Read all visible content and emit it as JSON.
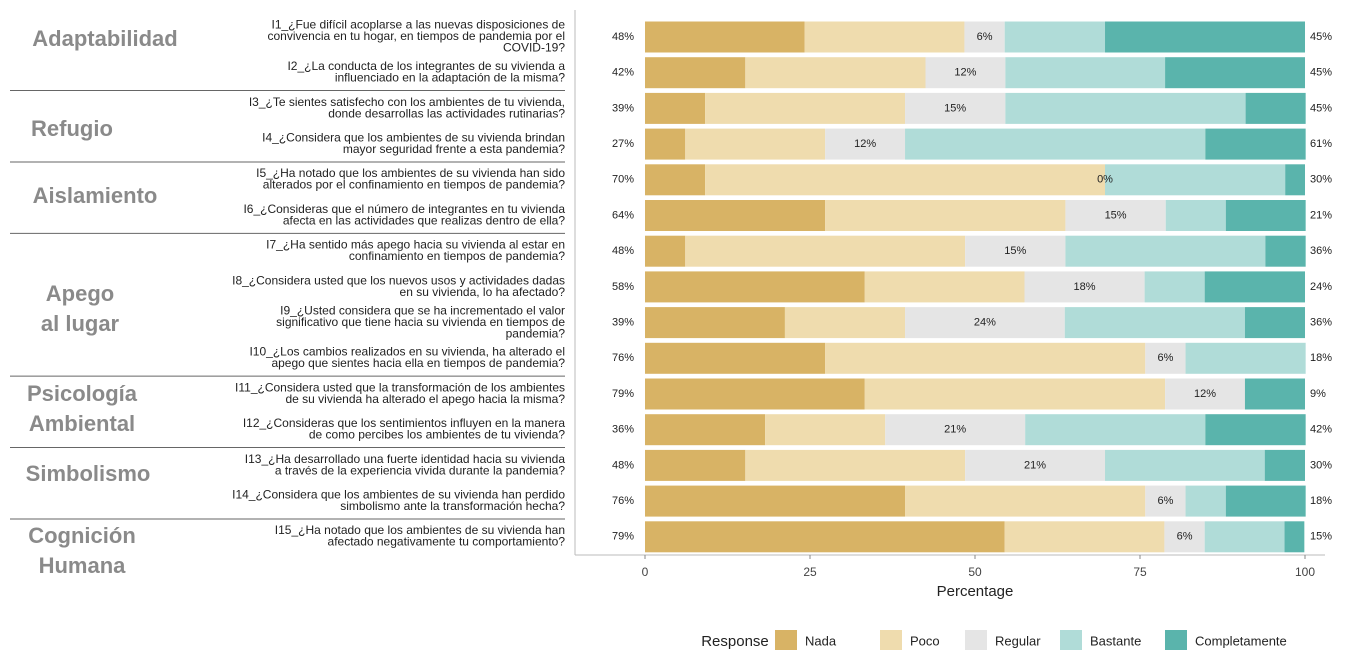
{
  "chart_data": {
    "type": "likert",
    "x_label": "Percentage",
    "xlim": [
      0,
      100
    ],
    "xticks": [
      0,
      25,
      50,
      75,
      100
    ],
    "legend_title": "Response",
    "groups": [
      [
        "Adaptabilidad"
      ],
      [
        "Refugio"
      ],
      [
        "Aislamiento"
      ],
      [
        "Apego",
        "al lugar"
      ],
      [
        "Psicología",
        "Ambiental"
      ],
      [
        "Simbolismo"
      ],
      [
        "Cognición",
        "Humana"
      ]
    ],
    "questions": [
      [
        "I1_¿Fue difícil acoplarse a las nuevas disposiciones de",
        "convivencia en tu hogar, en tiempos de pandemia por el",
        "COVID-19?"
      ],
      [
        "I2_¿La conducta de los integrantes de su vivienda a",
        "influenciado en la adaptación de la misma?"
      ],
      [
        "I3_¿Te sientes satisfecho con los ambientes de tu vivienda,",
        "donde desarrollas las actividades rutinarias?"
      ],
      [
        "I4_¿Considera que los ambientes de su vivienda brindan",
        "mayor seguridad frente a esta pandemia?"
      ],
      [
        "I5_¿Ha notado que los ambientes de su vivienda han sido",
        "alterados por el confinamiento en tiempos de pandemia?"
      ],
      [
        "I6_¿Consideras que el número de integrantes en tu vivienda",
        "afecta en las actividades que realizas dentro de ella?"
      ],
      [
        "I7_¿Ha sentido más apego hacia su vivienda al estar en",
        "confinamiento en tiempos de pandemia?"
      ],
      [
        "I8_¿Considera usted que los nuevos usos y actividades dadas",
        "en su vivienda, lo ha afectado?"
      ],
      [
        "I9_¿Usted considera que se ha incrementado el valor",
        "significativo que tiene hacia su vivienda en tiempos de",
        "pandemia?"
      ],
      [
        "I10_¿Los cambios realizados en su vivienda, ha alterado el",
        "apego que sientes hacia ella en tiempos de pandemia?"
      ],
      [
        "I11_¿Considera usted que la transformación de los ambientes",
        "de su vivienda ha alterado el apego hacia la misma?"
      ],
      [
        "I12_¿Consideras que los sentimientos influyen en la manera",
        "de como percibes los ambientes de tu vivienda?"
      ],
      [
        "I13_¿Ha desarrollado una fuerte identidad hacia su vivienda",
        "a través de la experiencia vivida durante la pandemia?"
      ],
      [
        "I14_¿Considera que los ambientes de su vivienda han perdido",
        "simbolismo ante la transformación hecha?"
      ],
      [
        "I15_¿Ha notado que los ambientes de su vivienda han",
        "afectado negativamente tu comportamiento?"
      ]
    ],
    "series": [
      {
        "name": "Nada",
        "color": "#d8b365",
        "values": [
          24.2,
          15.2,
          9.1,
          6.1,
          9.1,
          27.3,
          6.1,
          33.3,
          21.2,
          27.3,
          33.3,
          18.2,
          15.2,
          39.4,
          54.5
        ]
      },
      {
        "name": "Poco",
        "color": "#efdcae",
        "values": [
          24.2,
          27.3,
          30.3,
          21.2,
          60.6,
          36.4,
          42.4,
          24.2,
          18.2,
          48.5,
          45.5,
          18.2,
          33.3,
          36.4,
          24.2
        ]
      },
      {
        "name": "Regular",
        "color": "#e5e5e5",
        "values": [
          6.1,
          12.1,
          15.2,
          12.1,
          0,
          15.2,
          15.2,
          18.2,
          24.2,
          6.1,
          12.1,
          21.2,
          21.2,
          6.1,
          6.1
        ]
      },
      {
        "name": "Bastante",
        "color": "#b0dcd8",
        "values": [
          15.2,
          24.2,
          36.4,
          45.5,
          27.3,
          9.1,
          30.3,
          9.1,
          27.3,
          18.2,
          0,
          27.3,
          24.2,
          6.1,
          12.1
        ]
      },
      {
        "name": "Completamente",
        "color": "#5ab4ac",
        "values": [
          30.3,
          21.2,
          9.1,
          15.2,
          3,
          12.1,
          6.1,
          15.2,
          9.1,
          0,
          9.1,
          15.2,
          6.1,
          12.1,
          3
        ]
      }
    ],
    "low_labels": [
      "48%",
      "42%",
      "39%",
      "27%",
      "70%",
      "64%",
      "48%",
      "58%",
      "39%",
      "76%",
      "79%",
      "36%",
      "48%",
      "76%",
      "79%"
    ],
    "neutral_labels": [
      "6%",
      "12%",
      "15%",
      "12%",
      "0%",
      "15%",
      "15%",
      "18%",
      "24%",
      "6%",
      "12%",
      "21%",
      "21%",
      "6%",
      "6%"
    ],
    "high_labels": [
      "45%",
      "45%",
      "45%",
      "61%",
      "30%",
      "21%",
      "36%",
      "24%",
      "36%",
      "18%",
      "9%",
      "42%",
      "30%",
      "18%",
      "15%"
    ]
  }
}
